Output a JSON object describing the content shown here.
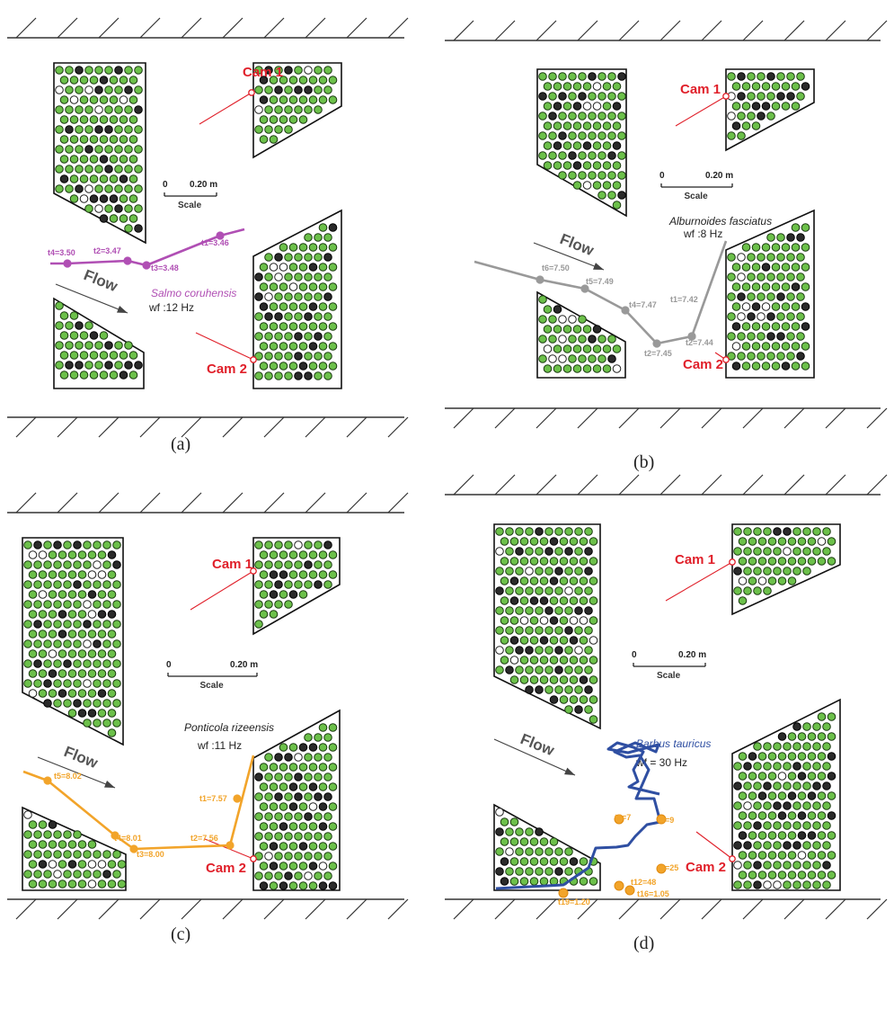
{
  "colors": {
    "wall": "#333333",
    "green_dot": "#6cc04a",
    "dark_dot": "#2a2a2a",
    "camera": "#e0202a",
    "panel_a_track": "#b04fb4",
    "panel_b_track": "#999999",
    "panel_c_track": "#f2a42a",
    "panel_d_track": "#2f4fa2",
    "panel_d_points": "#f2a42a"
  },
  "panels": [
    {
      "id": "a",
      "caption": "(a)",
      "cam1": "Cam 1",
      "cam2": "Cam 2",
      "scale": {
        "zero": "0",
        "length": "0.20 m",
        "label": "Scale"
      },
      "flow": "Flow",
      "species": "Salmo coruhensis",
      "wf": "wf :12 Hz",
      "points": [
        {
          "label": "t1=3.46"
        },
        {
          "label": "t2=3.47"
        },
        {
          "label": "t3=3.48"
        },
        {
          "label": "t4=3.50"
        }
      ]
    },
    {
      "id": "b",
      "caption": "(b)",
      "cam1": "Cam 1",
      "cam2": "Cam 2",
      "scale": {
        "zero": "0",
        "length": "0.20 m",
        "label": "Scale"
      },
      "flow": "Flow",
      "species": "Alburnoides fasciatus",
      "wf": "wf :8 Hz",
      "points": [
        {
          "label": "t1=7.42"
        },
        {
          "label": "t2=7.44"
        },
        {
          "label": "t2=7.45"
        },
        {
          "label": "t4=7.47"
        },
        {
          "label": "t5=7.49"
        },
        {
          "label": "t6=7.50"
        }
      ]
    },
    {
      "id": "c",
      "caption": "(c)",
      "cam1": "Cam 1",
      "cam2": "Cam 2",
      "scale": {
        "zero": "0",
        "length": "0.20 m",
        "label": "Scale"
      },
      "flow": "Flow",
      "species": "Ponticola rizeensis",
      "wf": "wf :11 Hz",
      "points": [
        {
          "label": "t1=7.57"
        },
        {
          "label": "t2=7.56"
        },
        {
          "label": "t3=8.00"
        },
        {
          "label": "t4=8.01"
        },
        {
          "label": "t5=8.02"
        }
      ]
    },
    {
      "id": "d",
      "caption": "(d)",
      "cam1": "Cam 1",
      "cam2": "Cam 2",
      "scale": {
        "zero": "0",
        "length": "0.20 m",
        "label": "Scale"
      },
      "flow": "Flow",
      "species": "Barbus tauricus",
      "wf": "wf = 30 Hz",
      "points": [
        {
          "label": "t3=7"
        },
        {
          "label": "t4=9"
        },
        {
          "label": "t9=25"
        },
        {
          "label": "t12=48"
        },
        {
          "label": "t16=1.05"
        },
        {
          "label": "t19=1.20"
        }
      ]
    }
  ]
}
